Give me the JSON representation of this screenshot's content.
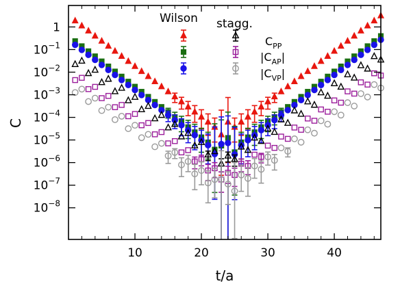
{
  "chart_data": {
    "type": "scatter",
    "xlabel": "t/a",
    "ylabel": "C",
    "xlim": [
      0,
      47
    ],
    "ylim_log10": [
      -9.4,
      0.95
    ],
    "yscale": "log",
    "x_ticks": [
      10,
      20,
      30,
      40
    ],
    "x_tick_labels": [
      "10",
      "20",
      "30",
      "40"
    ],
    "y_ticks_log10": [
      0,
      -1,
      -2,
      -3,
      -4,
      -5,
      -6,
      -7,
      -8
    ],
    "y_tick_labels": [
      {
        "base": "1",
        "exp": ""
      },
      {
        "base": "10",
        "exp": "−1"
      },
      {
        "base": "10",
        "exp": "−2"
      },
      {
        "base": "10",
        "exp": "−3"
      },
      {
        "base": "10",
        "exp": "−4"
      },
      {
        "base": "10",
        "exp": "−5"
      },
      {
        "base": "10",
        "exp": "−6"
      },
      {
        "base": "10",
        "exp": "−7"
      },
      {
        "base": "10",
        "exp": "−8"
      }
    ],
    "legend": {
      "position": "top-center",
      "headers": [
        "Wilson",
        "stagg."
      ],
      "rows": [
        {
          "label": "C",
          "sub": "PP",
          "abs": false
        },
        {
          "label": "C",
          "sub": "AP",
          "abs": true
        },
        {
          "label": "C",
          "sub": "VP",
          "abs": true
        }
      ]
    },
    "t_range": [
      1,
      47
    ],
    "series": [
      {
        "name": "Wilson C_PP",
        "color": "#e8170f",
        "marker": "triangle",
        "filled": true,
        "log10_model": {
          "kind": "cosh",
          "log_a": 0.5,
          "slope": 0.224,
          "center": 23.5
        },
        "log10_noise_floor": -4.55,
        "error_growth": 0.3
      },
      {
        "name": "Wilson |C_AP|",
        "color": "#1a6e12",
        "marker": "square",
        "filled": true,
        "log10_model": {
          "kind": "cosh",
          "log_a": -0.4,
          "slope": 0.224,
          "center": 23.5
        },
        "log10_noise_floor": -5.2,
        "error_growth": 0.35
      },
      {
        "name": "Wilson |C_VP|",
        "color": "#1a12e8",
        "marker": "circle",
        "filled": true,
        "log10_model": {
          "kind": "cosh",
          "log_a": -0.57,
          "slope": 0.222,
          "center": 23.5
        },
        "log10_noise_floor": -5.3,
        "error_growth": 0.4
      },
      {
        "name": "stagg. C_PP",
        "color": "#000000",
        "marker": "triangle",
        "filled": false,
        "log10_model": {
          "kind": "cosh_osc",
          "log_a": -1.1,
          "slope": 0.2,
          "center": 23.5,
          "odd_drop": 0.35
        },
        "log10_noise_floor": -7.1,
        "error_growth": 0.25
      },
      {
        "name": "stagg. |C_AP|",
        "color": "#9b1d9b",
        "marker": "square",
        "filled": false,
        "log10_model": {
          "kind": "cosh_osc",
          "log_a": -1.85,
          "slope": 0.2,
          "center": 23.5,
          "odd_drop": 0.3
        },
        "log10_noise_floor": -7.2,
        "error_growth": 0.3
      },
      {
        "name": "stagg. |C_VP|",
        "color": "#9a9a9a",
        "marker": "circle",
        "filled": false,
        "log10_model": {
          "kind": "cosh_osc",
          "log_a": -2.35,
          "slope": 0.2,
          "center": 23.5,
          "odd_drop": 0.35
        },
        "log10_noise_floor": -7.0,
        "error_growth": 0.45
      }
    ]
  }
}
